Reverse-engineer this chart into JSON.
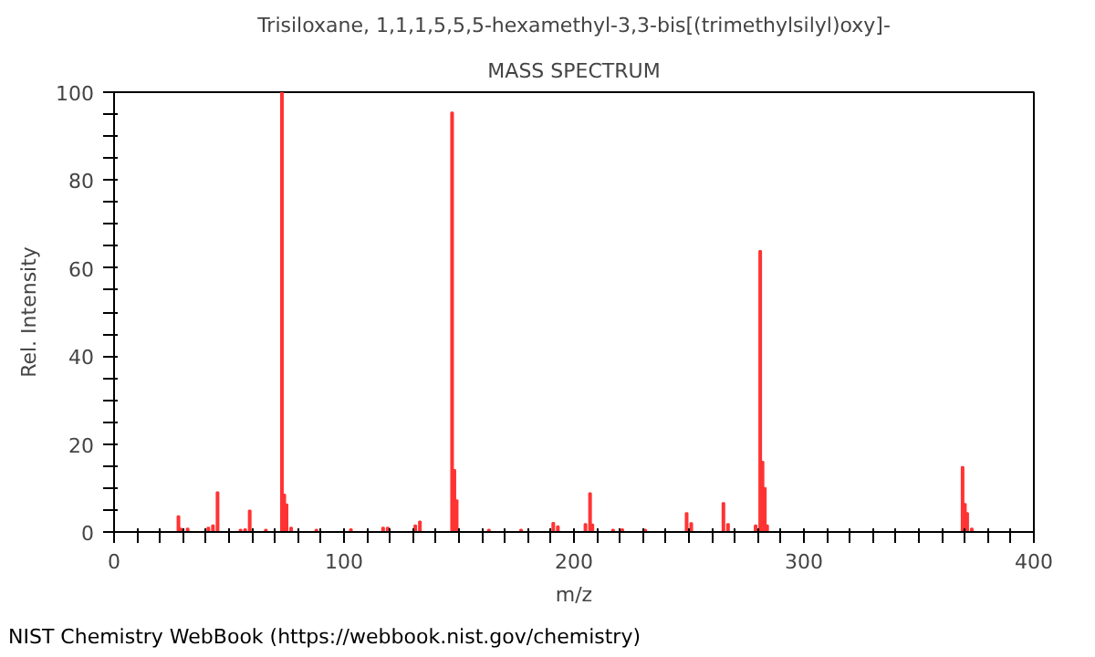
{
  "chart_data": {
    "type": "bar",
    "title": "Trisiloxane, 1,1,1,5,5,5-hexamethyl-3,3-bis[(trimethylsilyl)oxy]-",
    "subtitle": "MASS SPECTRUM",
    "xlabel": "m/z",
    "ylabel": "Rel. Intensity",
    "annotations": [
      "NIST Chemistry WebBook (https://webbook.nist.gov/chemistry)"
    ],
    "x": [
      28,
      29,
      32,
      41,
      43,
      45,
      55,
      57,
      59,
      66,
      73,
      74,
      75,
      77,
      88,
      103,
      117,
      119,
      131,
      133,
      147,
      148,
      149,
      163,
      177,
      191,
      193,
      205,
      207,
      208,
      217,
      221,
      231,
      249,
      251,
      265,
      267,
      279,
      281,
      282,
      283,
      284,
      369,
      370,
      371,
      373
    ],
    "values": [
      3.6,
      0.8,
      0.8,
      1,
      1.5,
      9,
      0.5,
      0.6,
      4.9,
      0.5,
      100,
      8.5,
      6.3,
      1,
      0.5,
      0.6,
      1,
      1,
      1.5,
      2.4,
      95.4,
      14.1,
      7.2,
      0.5,
      0.5,
      2.1,
      1.3,
      1.8,
      8.8,
      1.7,
      0.5,
      0.6,
      0.5,
      4.3,
      2,
      6.6,
      1.8,
      1.5,
      63.9,
      16,
      10,
      1.5,
      14.8,
      6.4,
      4.3,
      0.8
    ],
    "color": "#ff3333",
    "xlim": [
      0,
      400
    ],
    "ylim": [
      0,
      100
    ],
    "xticks": [
      0,
      {
        "value": 10,
        "label": null
      },
      {
        "value": 20,
        "label": null
      },
      {
        "value": 30,
        "label": null
      },
      {
        "value": 40,
        "label": null
      },
      {
        "value": 50,
        "label": null
      },
      {
        "value": 60,
        "label": null
      },
      {
        "value": 70,
        "label": null
      },
      {
        "value": 80,
        "label": null
      },
      {
        "value": 90,
        "label": null
      },
      100,
      {
        "value": 110,
        "label": null
      },
      {
        "value": 120,
        "label": null
      },
      {
        "value": 130,
        "label": null
      },
      {
        "value": 140,
        "label": null
      },
      {
        "value": 150,
        "label": null
      },
      {
        "value": 160,
        "label": null
      },
      {
        "value": 170,
        "label": null
      },
      {
        "value": 180,
        "label": null
      },
      {
        "value": 190,
        "label": null
      },
      200,
      {
        "value": 210,
        "label": null
      },
      {
        "value": 220,
        "label": null
      },
      {
        "value": 230,
        "label": null
      },
      {
        "value": 240,
        "label": null
      },
      {
        "value": 250,
        "label": null
      },
      {
        "value": 260,
        "label": null
      },
      {
        "value": 270,
        "label": null
      },
      {
        "value": 280,
        "label": null
      },
      {
        "value": 290,
        "label": null
      },
      300,
      {
        "value": 310,
        "label": null
      },
      {
        "value": 320,
        "label": null
      },
      {
        "value": 330,
        "label": null
      },
      {
        "value": 340,
        "label": null
      },
      {
        "value": 350,
        "label": null
      },
      {
        "value": 360,
        "label": null
      },
      {
        "value": 370,
        "label": null
      },
      {
        "value": 380,
        "label": null
      },
      {
        "value": 390,
        "label": null
      },
      400
    ],
    "yticks": [
      0,
      {
        "value": 5,
        "label": null
      },
      {
        "value": 10,
        "label": null
      },
      {
        "value": 15,
        "label": null
      },
      20,
      {
        "value": 25,
        "label": null
      },
      {
        "value": 30,
        "label": null
      },
      {
        "value": 35,
        "label": null
      },
      40,
      {
        "value": 45,
        "label": null
      },
      {
        "value": 50,
        "label": null
      },
      {
        "value": 55,
        "label": null
      },
      60,
      {
        "value": 65,
        "label": null
      },
      {
        "value": 70,
        "label": null
      },
      {
        "value": 75,
        "label": null
      },
      80,
      {
        "value": 85,
        "label": null
      },
      {
        "value": 90,
        "label": null
      },
      {
        "value": 95,
        "label": null
      },
      100
    ],
    "grid": false
  }
}
